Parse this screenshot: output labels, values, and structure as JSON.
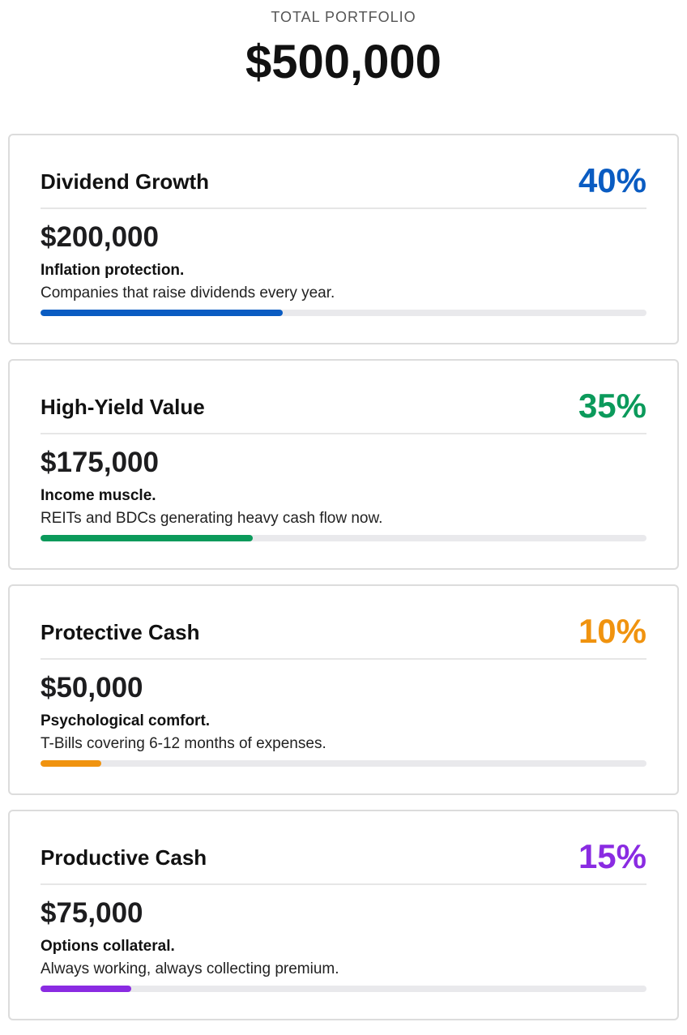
{
  "header": {
    "label": "TOTAL PORTFOLIO",
    "total": "$500,000"
  },
  "cards": [
    {
      "title": "Dividend Growth",
      "percent": "40%",
      "allocation": 0.4,
      "amount": "$200,000",
      "headline": "Inflation protection.",
      "description": "Companies that raise dividends every year.",
      "color": "#0a5cc2"
    },
    {
      "title": "High-Yield Value",
      "percent": "35%",
      "allocation": 0.35,
      "amount": "$175,000",
      "headline": "Income muscle.",
      "description": "REITs and BDCs generating heavy cash flow now.",
      "color": "#0b9a5b"
    },
    {
      "title": "Protective Cash",
      "percent": "10%",
      "allocation": 0.1,
      "amount": "$50,000",
      "headline": "Psychological comfort.",
      "description": "T-Bills covering 6-12 months of expenses.",
      "color": "#f0930f"
    },
    {
      "title": "Productive Cash",
      "percent": "15%",
      "allocation": 0.15,
      "amount": "$75,000",
      "headline": "Options collateral.",
      "description": "Always working, always collecting premium.",
      "color": "#8a2be2"
    }
  ]
}
